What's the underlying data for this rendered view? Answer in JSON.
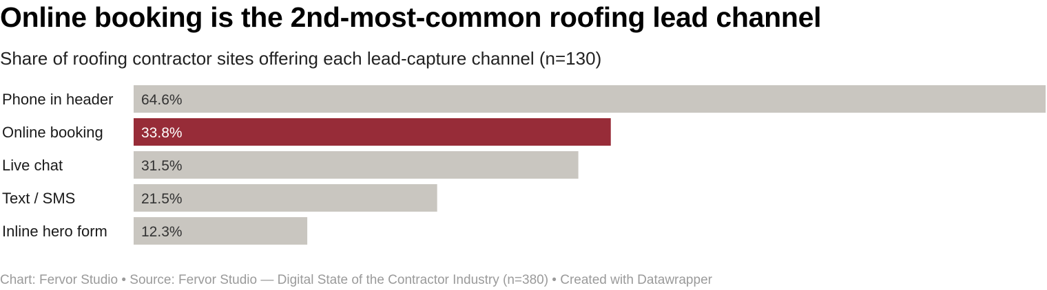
{
  "title": "Online booking is the 2nd-most-common roofing lead channel",
  "subtitle": "Share of roofing contractor sites offering each lead-capture channel (n=130)",
  "footer": "Chart: Fervor Studio • Source: Fervor Studio — Digital State of the Contractor Industry (n=380) • Created with Datawrapper",
  "colors": {
    "bar": "#c9c6c0",
    "highlight": "#972c38",
    "label_on_bar": "#333333",
    "label_on_highlight": "#ffffff"
  },
  "chart_data": {
    "type": "bar",
    "orientation": "horizontal",
    "categories": [
      "Phone in header",
      "Online booking",
      "Live chat",
      "Text / SMS",
      "Inline hero form"
    ],
    "values": [
      64.6,
      33.8,
      31.5,
      21.5,
      12.3
    ],
    "value_labels": [
      "64.6%",
      "33.8%",
      "31.5%",
      "21.5%",
      "12.3%"
    ],
    "highlighted": "Online booking",
    "unit": "%",
    "xlim": [
      0,
      64.6
    ],
    "grid": false,
    "legend": "none"
  }
}
